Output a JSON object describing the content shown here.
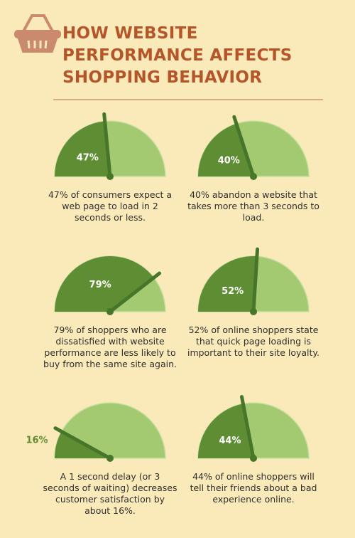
{
  "title_lines": [
    "HOW WEBSITE",
    "PERFORMANCE AFFECTS",
    "SHOPPING BEHAVIOR"
  ],
  "gauges": [
    {
      "value": 47,
      "value_label": "47%",
      "caption": "47% of consumers expect a web page to load in 2 seconds or less."
    },
    {
      "value": 40,
      "value_label": "40%",
      "caption": "40% abandon a website that takes more than 3 seconds to load."
    },
    {
      "value": 79,
      "value_label": "79%",
      "caption": "79% of shoppers who are dissatisfied with website performance are less likely to buy from the same site again."
    },
    {
      "value": 52,
      "value_label": "52%",
      "caption": "52% of online shoppers state that quick page loading is important to their site loyalty."
    },
    {
      "value": 16,
      "value_label": "16%",
      "caption": "A 1 second delay (or 3 seconds of waiting) decreases customer satisfaction by about 16%."
    },
    {
      "value": 44,
      "value_label": "44%",
      "caption": "44% of online shoppers will tell their friends about a bad experience online."
    }
  ]
}
